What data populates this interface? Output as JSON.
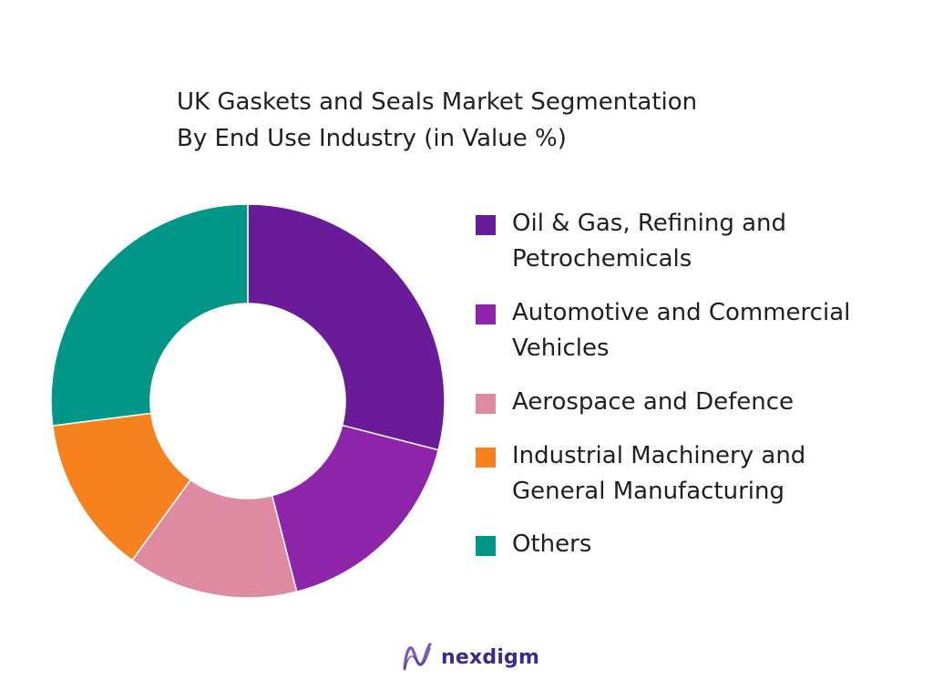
{
  "chart_data": {
    "type": "pie",
    "title": [
      "UK Gaskets and Seals Market Segmentation",
      "By End Use Industry (in Value %)"
    ],
    "donut": true,
    "legend_position": "right",
    "slices": [
      {
        "label": "Oil & Gas, Refining and\nPetrochemicals",
        "value": 29,
        "color": "#6a1b9a"
      },
      {
        "label": "Automotive and Commercial\nVehicles",
        "value": 17,
        "color": "#8e24aa"
      },
      {
        "label": "Aerospace and Defence",
        "value": 14,
        "color": "#de8aa1"
      },
      {
        "label": "Industrial Machinery and\nGeneral Manufacturing",
        "value": 13,
        "color": "#f5821f"
      },
      {
        "label": "Others",
        "value": 27,
        "color": "#009688"
      }
    ]
  },
  "brand": {
    "name": "nexdigm",
    "logo_icon": "nexdigm-logo-icon",
    "color": "#3b2a8a",
    "logo_color": "#7e57c2"
  }
}
